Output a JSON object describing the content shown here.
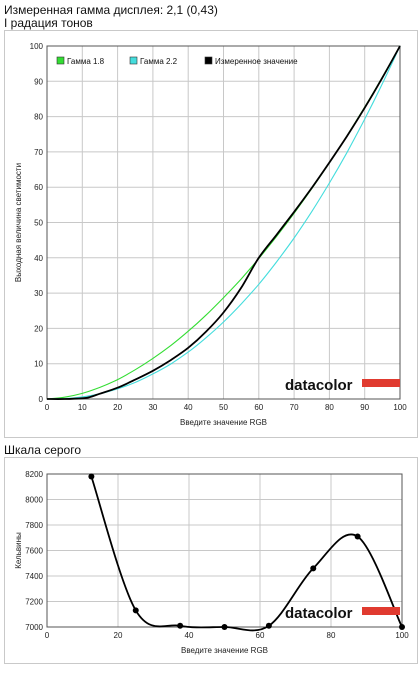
{
  "header": {
    "gamma_line": "Измеренная гамма дисплея: 2,1 (0,43)",
    "tone_line": "I радация тонов"
  },
  "gray_section": {
    "title": "Шкала серого"
  },
  "brand": {
    "logo_text": "datacolor",
    "accent_color": "#e03a2f"
  },
  "chart_data": [
    {
      "type": "line",
      "title": "",
      "xlabel": "Введите значение RGB",
      "ylabel": "Выходная величина светимости",
      "xlim": [
        0,
        100
      ],
      "ylim": [
        0,
        100
      ],
      "xticks": [
        0,
        10,
        20,
        30,
        40,
        50,
        60,
        70,
        80,
        90,
        100
      ],
      "yticks": [
        0,
        10,
        20,
        30,
        40,
        50,
        60,
        70,
        80,
        90,
        100
      ],
      "grid": true,
      "legend_position": "top-left",
      "series": [
        {
          "name": "Гамма 1.8",
          "color": "#33dd33",
          "x": [
            0,
            5,
            10,
            15,
            20,
            25,
            30,
            35,
            40,
            45,
            50,
            55,
            60,
            65,
            70,
            75,
            80,
            85,
            90,
            95,
            100
          ],
          "y": [
            0,
            0.5,
            1.6,
            3.3,
            5.5,
            8.3,
            11.5,
            15.1,
            19.2,
            23.7,
            28.7,
            34.0,
            39.8,
            46.0,
            52.6,
            59.6,
            66.9,
            74.6,
            82.7,
            91.2,
            100
          ]
        },
        {
          "name": "Гамма 2.2",
          "color": "#44dddd",
          "x": [
            0,
            5,
            10,
            15,
            20,
            25,
            30,
            35,
            40,
            45,
            50,
            55,
            60,
            65,
            70,
            75,
            80,
            85,
            90,
            95,
            100
          ],
          "y": [
            0,
            0.1,
            0.6,
            1.5,
            2.9,
            4.7,
            7.1,
            9.9,
            13.3,
            17.3,
            21.8,
            26.9,
            32.5,
            38.8,
            45.6,
            53.1,
            61.2,
            69.9,
            79.3,
            89.3,
            100
          ]
        },
        {
          "name": "Измеренное значение",
          "color": "#000000",
          "x": [
            0,
            5,
            10,
            12,
            15,
            20,
            25,
            30,
            35,
            40,
            45,
            50,
            55,
            60,
            65,
            70,
            75,
            80,
            85,
            90,
            95,
            100
          ],
          "y": [
            0,
            0,
            0.2,
            0.5,
            1.5,
            3.2,
            5.5,
            8.0,
            11.0,
            14.5,
            19.0,
            24.5,
            31.5,
            40.0,
            46.5,
            53.0,
            59.8,
            67.0,
            74.5,
            82.5,
            91.0,
            100
          ]
        }
      ]
    },
    {
      "type": "line",
      "title": "",
      "xlabel": "Введите значение RGB",
      "ylabel": "Кельвины",
      "xlim": [
        0,
        100
      ],
      "ylim": [
        7000,
        8200
      ],
      "xticks": [
        0,
        20,
        40,
        60,
        80,
        100
      ],
      "yticks": [
        7000,
        7200,
        7400,
        7600,
        7800,
        8000,
        8200
      ],
      "grid": true,
      "series": [
        {
          "color": "#000000",
          "x": [
            12.5,
            25,
            37.5,
            50,
            62.5,
            75,
            87.5,
            100
          ],
          "y": [
            8180,
            7130,
            7010,
            7000,
            7010,
            7460,
            7710,
            7000
          ]
        }
      ]
    }
  ]
}
